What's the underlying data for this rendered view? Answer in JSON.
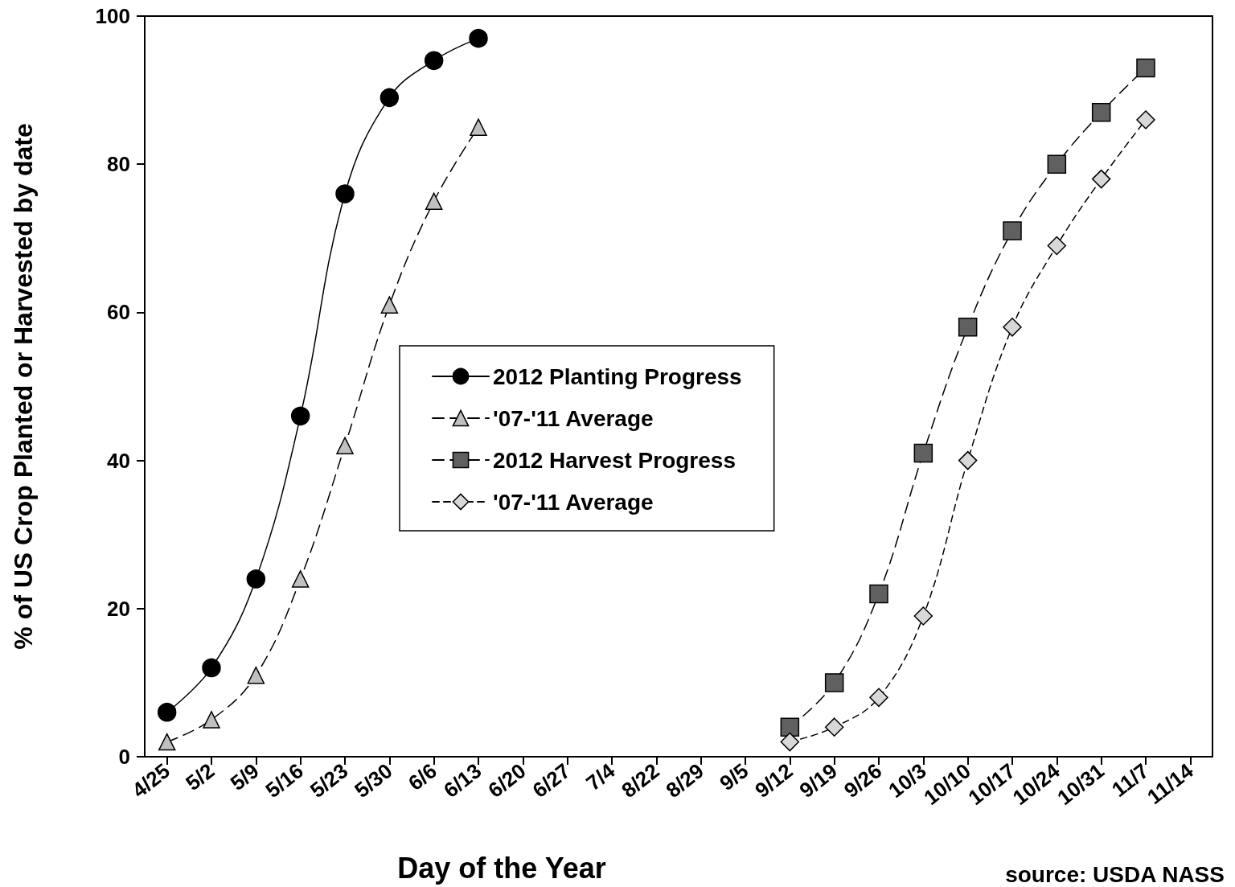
{
  "chart_data": {
    "type": "line",
    "xlabel": "Day of the Year",
    "ylabel": "% of US Crop Planted or Harvested by date",
    "categories": [
      "4/25",
      "5/2",
      "5/9",
      "5/16",
      "5/23",
      "5/30",
      "6/6",
      "6/13",
      "6/20",
      "6/27",
      "7/4",
      "8/22",
      "8/29",
      "9/5",
      "9/12",
      "9/19",
      "9/26",
      "10/3",
      "10/10",
      "10/17",
      "10/24",
      "10/31",
      "11/7",
      "11/14"
    ],
    "series": [
      {
        "name": "2012 Planting Progress",
        "color": "#000000",
        "marker": "circle",
        "line_style": "solid",
        "values": [
          6,
          12,
          24,
          46,
          76,
          89,
          94,
          97,
          null,
          null,
          null,
          null,
          null,
          null,
          null,
          null,
          null,
          null,
          null,
          null,
          null,
          null,
          null,
          null
        ]
      },
      {
        "name": "'07-'11 Average",
        "color": "#c0c0c0",
        "marker": "triangle",
        "line_style": "dashed",
        "values": [
          2,
          5,
          11,
          24,
          42,
          61,
          75,
          85,
          null,
          null,
          null,
          null,
          null,
          null,
          null,
          null,
          null,
          null,
          null,
          null,
          null,
          null,
          null,
          null
        ]
      },
      {
        "name": "2012 Harvest Progress",
        "color": "#606060",
        "marker": "square",
        "line_style": "dashed",
        "values": [
          null,
          null,
          null,
          null,
          null,
          null,
          null,
          null,
          null,
          null,
          null,
          null,
          null,
          null,
          4,
          10,
          22,
          41,
          58,
          71,
          80,
          87,
          93,
          null
        ]
      },
      {
        "name": "'07-'11 Average",
        "color": "#d8d8d8",
        "marker": "diamond",
        "line_style": "dotted",
        "values": [
          null,
          null,
          null,
          null,
          null,
          null,
          null,
          null,
          null,
          null,
          null,
          null,
          null,
          null,
          2,
          4,
          8,
          19,
          40,
          58,
          69,
          78,
          86,
          null
        ]
      }
    ],
    "ylim": [
      0,
      100
    ],
    "yticks": [
      0,
      20,
      40,
      60,
      80,
      100
    ],
    "grid": false,
    "legend": "center",
    "annotations": [
      "source: USDA NASS"
    ]
  }
}
